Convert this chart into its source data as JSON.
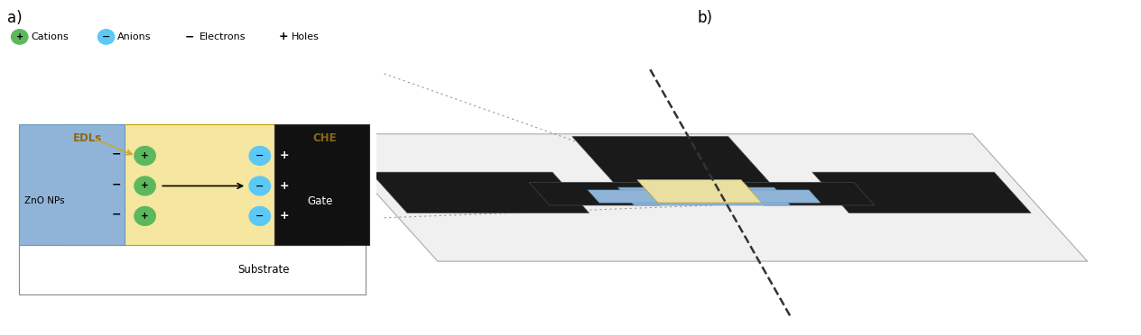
{
  "fig_width": 12.64,
  "fig_height": 3.72,
  "dpi": 100,
  "panel_a_label": "a)",
  "panel_b_label": "b)",
  "legend": {
    "cation_color": "#5cb85c",
    "anion_color": "#5bc8f5",
    "cation_label": "Cations",
    "anion_label": "Anions",
    "electron_label": "Electrons",
    "hole_label": "Holes"
  },
  "schematic": {
    "substrate_color": "#ffffff",
    "zno_color": "#90b4d8",
    "edl_color": "#f5e6a0",
    "gate_color": "#111111",
    "edl_label": "EDLs",
    "che_label": "CHE",
    "zno_label": "ZnO NPs",
    "gate_label": "Gate",
    "substrate_label": "Substrate",
    "cation_color": "#5cb85c",
    "anion_color": "#5bc8f5",
    "arrow_color": "#c8a830",
    "edl_text_color": "#8B6914"
  },
  "panel_b": {
    "plate_color": "#f0f0f0",
    "plate_edge": "#aaaaaa",
    "black_color": "#1a1a1a",
    "zno_color": "#90b4d8",
    "zno_edge": "#6699bb",
    "che_color": "#e8dfa0",
    "che_edge": "#b8a040",
    "dashed_color": "#333333",
    "dot_line_color": "#999999"
  }
}
